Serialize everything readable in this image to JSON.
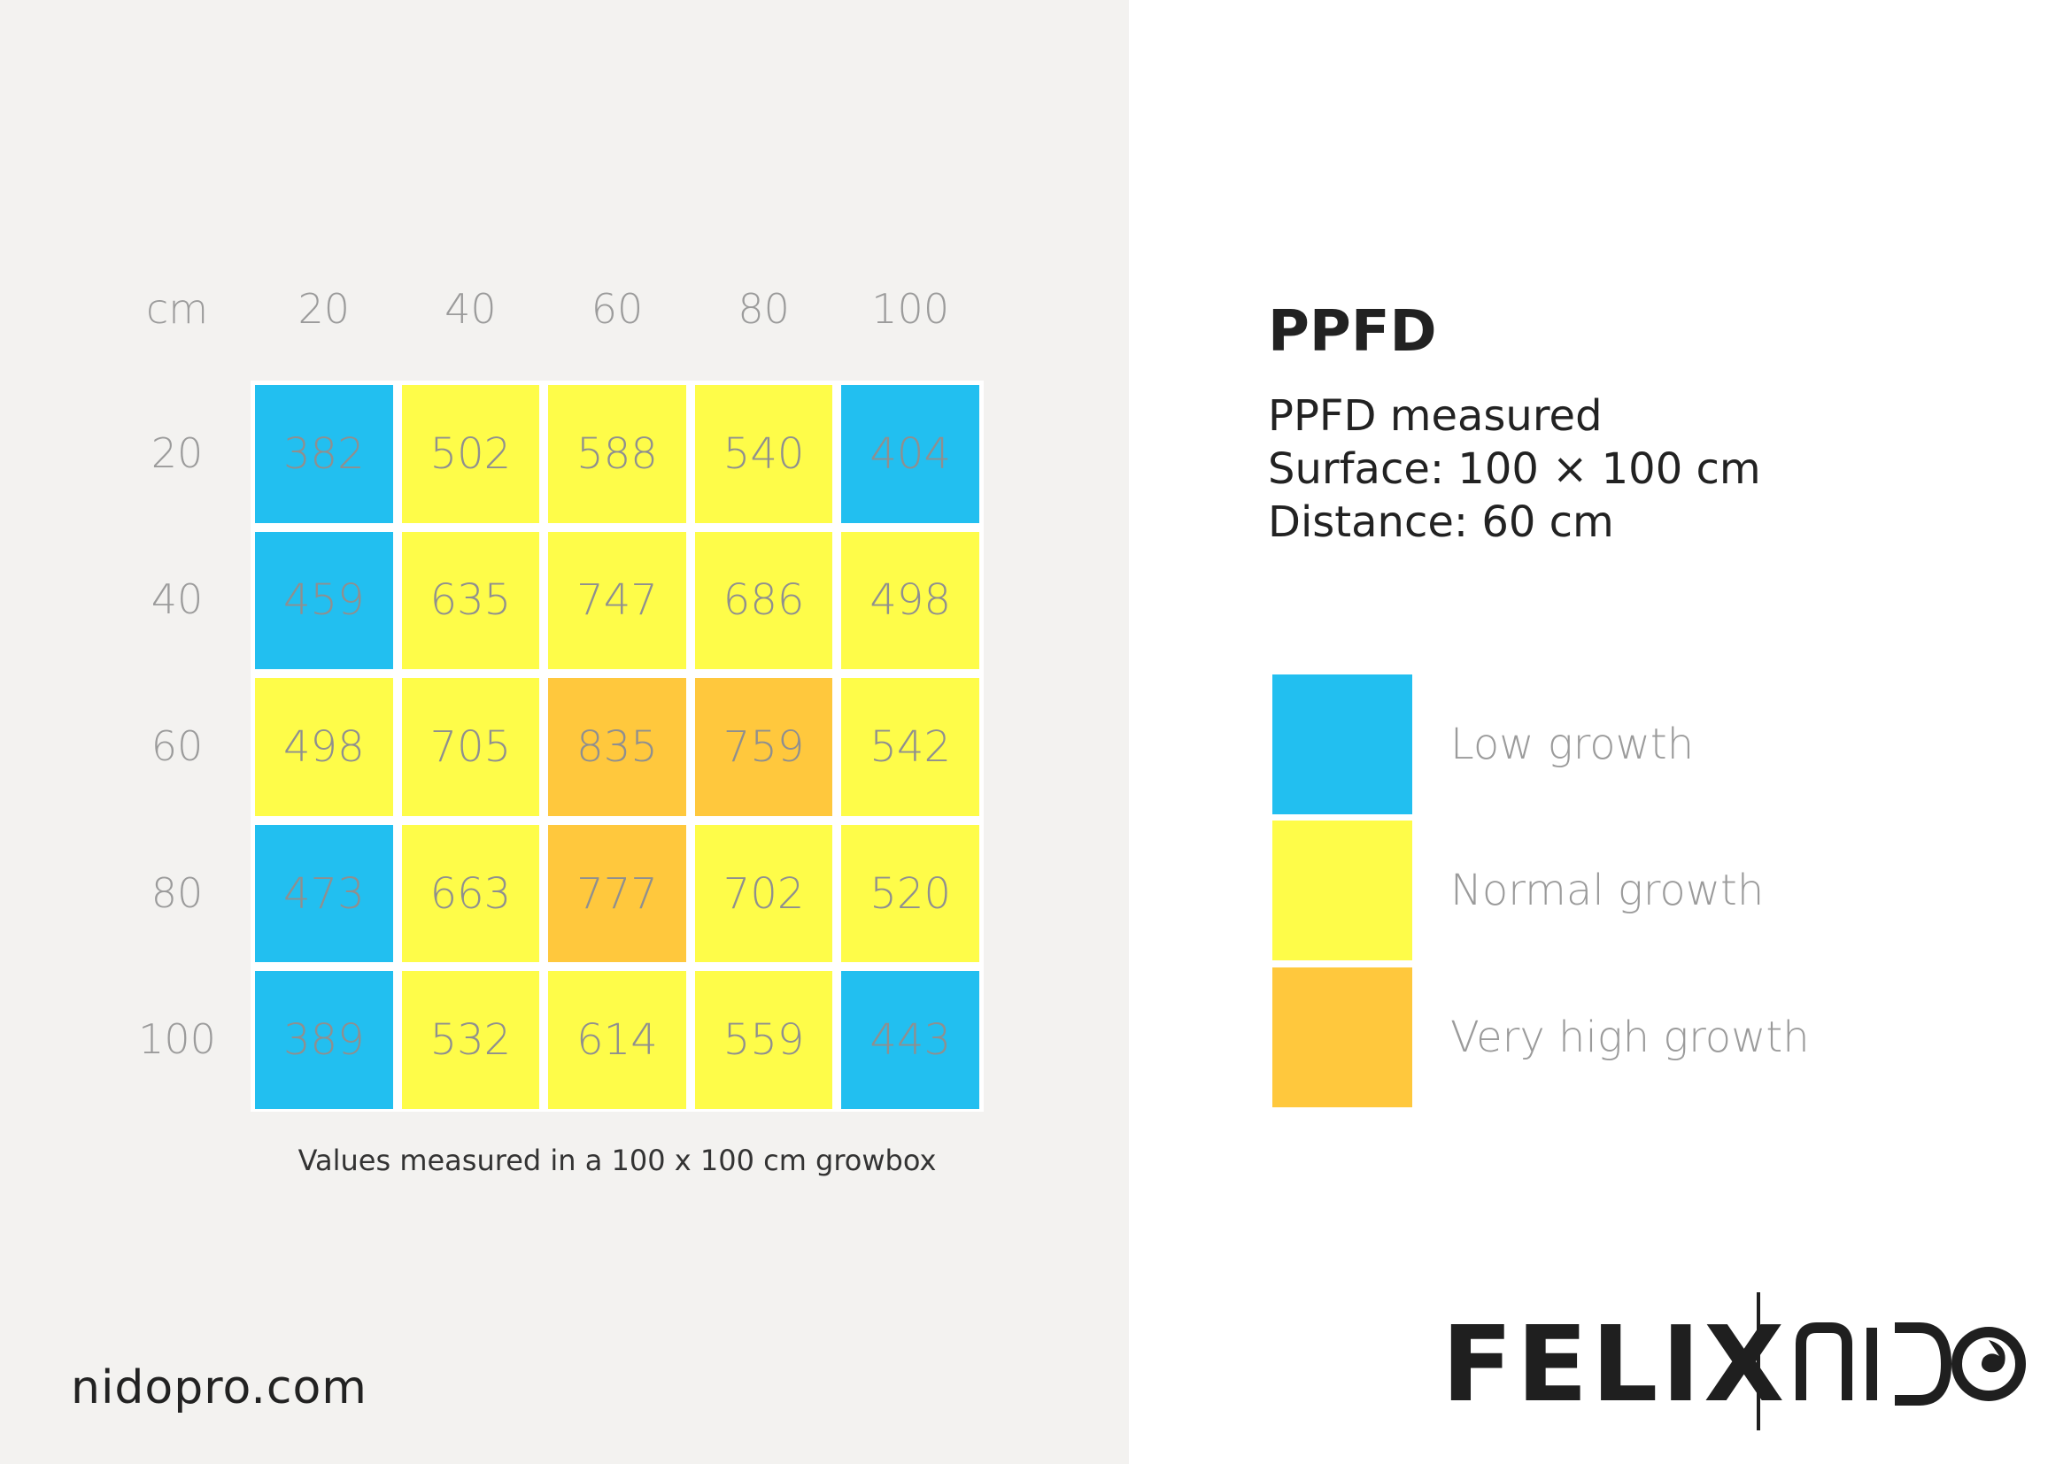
{
  "chart_data": {
    "type": "heatmap",
    "corner_label": "cm",
    "x_labels": [
      "20",
      "40",
      "60",
      "80",
      "100"
    ],
    "y_labels": [
      "20",
      "40",
      "60",
      "80",
      "100"
    ],
    "values": [
      [
        382,
        502,
        588,
        540,
        404
      ],
      [
        459,
        635,
        747,
        686,
        498
      ],
      [
        498,
        705,
        835,
        759,
        542
      ],
      [
        473,
        663,
        777,
        702,
        520
      ],
      [
        389,
        532,
        614,
        559,
        443
      ]
    ],
    "categories": [
      [
        "low",
        "normal",
        "normal",
        "normal",
        "low"
      ],
      [
        "low",
        "normal",
        "normal",
        "normal",
        "normal"
      ],
      [
        "normal",
        "normal",
        "high",
        "high",
        "normal"
      ],
      [
        "low",
        "normal",
        "high",
        "normal",
        "normal"
      ],
      [
        "low",
        "normal",
        "normal",
        "normal",
        "low"
      ]
    ],
    "caption": "Values measured in a 100 x 100 cm growbox"
  },
  "colors": {
    "low": "#22bff0",
    "normal": "#fefc49",
    "high": "#ffc83d",
    "left_background": "#f3f2f0"
  },
  "info": {
    "title": "PPFD",
    "line1": "PPFD measured",
    "line2": "Surface: 100 × 100 cm",
    "line3": "Distance: 60 cm"
  },
  "legend": [
    {
      "key": "low",
      "label": "Low growth"
    },
    {
      "key": "normal",
      "label": "Normal growth"
    },
    {
      "key": "high",
      "label": "Very high growth"
    }
  ],
  "footer": {
    "url": "nidopro.com",
    "brand_left": "FELIX",
    "brand_right": "NIDO"
  }
}
